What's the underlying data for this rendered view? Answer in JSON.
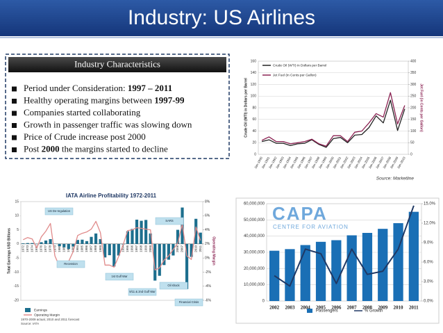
{
  "title": "Industry: US Airlines",
  "characteristics": {
    "heading": "Industry Characteristics",
    "bullets": [
      [
        {
          "text": "Period under Consideration: "
        },
        {
          "text": "1997 – 2011",
          "bold": true
        }
      ],
      [
        {
          "text": "Healthy operating margins between "
        },
        {
          "text": "1997-99",
          "bold": true
        }
      ],
      [
        {
          "text": "Companies started collaborating"
        }
      ],
      [
        {
          "text": "Growth in passenger traffic was slowing down"
        }
      ],
      [
        {
          "text": "Price of Crude increase post 2000"
        }
      ],
      [
        {
          "text": "Post "
        },
        {
          "text": "2000",
          "bold": true
        },
        {
          "text": " the margins started to decline"
        }
      ]
    ]
  },
  "chart_data": [
    {
      "type": "line",
      "ylabel": "Crude Oil (WTI) in Dollars per Barrel",
      "y2label": "Jet Fuel (in Cents per Gallon)",
      "source": "Source: Marketline",
      "categories": [
        "Jan-1990",
        "Jan-1991",
        "Jan-1992",
        "Jan-1993",
        "Jan-1994",
        "Jan-1995",
        "Jan-1996",
        "Jan-1997",
        "Jan-1998",
        "Jan-1999",
        "Jan-2000",
        "Jan-2001",
        "Jan-2002",
        "Jan-2003",
        "Jan-2004",
        "Jan-2005",
        "Jan-2006",
        "Jan-2007",
        "Jan-2008",
        "Jan-2009",
        "Jan-2010"
      ],
      "series": [
        {
          "name": "Crude Oil (WTI) in Dollars per Barrel",
          "color": "#222222",
          "values": [
            22,
            25,
            19,
            19,
            15,
            18,
            19,
            25,
            17,
            12,
            27,
            29,
            20,
            33,
            34,
            46,
            66,
            54,
            93,
            41,
            78
          ]
        },
        {
          "name": "Jet Fuel (in Cents per Gallon)",
          "color": "#8b2252",
          "axis": "y2",
          "values": [
            60,
            75,
            55,
            55,
            45,
            50,
            55,
            65,
            45,
            35,
            80,
            80,
            55,
            95,
            100,
            135,
            175,
            160,
            265,
            130,
            210
          ]
        }
      ],
      "ylim": [
        0,
        160
      ],
      "yticks": [
        0,
        20,
        40,
        60,
        80,
        100,
        120,
        140,
        160
      ],
      "y2lim": [
        0,
        400
      ],
      "y2ticks": [
        0,
        50,
        100,
        150,
        200,
        250,
        300,
        350,
        400
      ],
      "grid": true
    },
    {
      "type": "bar",
      "title": "IATA Airline Profitability 1972-2011",
      "ylabel": "Total Earnings USD Billions",
      "y2label": "Operating Margin",
      "note": "1970-2009 actual, 2010 and 2011 forecast",
      "source": "Source: IATA",
      "annotations": [
        "US De-regulation",
        "Recession",
        "1st Gulf War",
        "SARS",
        "9/11 & 2nd Gulf War",
        "Oil shock",
        "Financial Crisis"
      ],
      "categories": [
        "1972",
        "1973",
        "1974",
        "1975",
        "1976",
        "1977",
        "1978",
        "1979",
        "1980",
        "1981",
        "1982",
        "1983",
        "1984",
        "1985",
        "1986",
        "1987",
        "1988",
        "1989",
        "1990",
        "1991",
        "1992",
        "1993",
        "1994",
        "1995",
        "1996",
        "1997",
        "1998",
        "1999",
        "2000",
        "2001",
        "2002",
        "2003",
        "2004",
        "2005",
        "2006",
        "2007",
        "2008",
        "2009",
        "2010",
        "2011"
      ],
      "series": [
        {
          "name": "Earnings",
          "color": "#1d6f8e",
          "values": [
            0.2,
            0.3,
            0.3,
            -0.1,
            0.6,
            1.2,
            1.7,
            0.1,
            -0.8,
            -1.2,
            -1.8,
            -0.9,
            1.4,
            1.5,
            1.0,
            2.5,
            3.7,
            1.7,
            -4.8,
            -4.0,
            -8.0,
            -4.1,
            -0.2,
            4.5,
            5.3,
            8.6,
            8.2,
            8.5,
            3.7,
            -13.0,
            -11.3,
            -7.5,
            -5.6,
            -4.1,
            5.0,
            12.9,
            -16.0,
            -4.6,
            8.9,
            4.0
          ]
        },
        {
          "name": "Operating Margin",
          "color": "#e08a8a",
          "axis": "y2",
          "values": [
            2.6,
            2.9,
            2.7,
            1.4,
            3.0,
            3.8,
            4.9,
            0.3,
            -1.2,
            -0.6,
            -0.5,
            0.9,
            3.2,
            3.5,
            3.7,
            4.1,
            5.2,
            3.6,
            -1.0,
            -1.0,
            -1.3,
            0.2,
            1.9,
            3.9,
            4.0,
            4.3,
            4.2,
            4.1,
            4.0,
            -1.7,
            -1.4,
            -0.3,
            0.3,
            1.2,
            2.1,
            4.8,
            0.3,
            -0.2,
            4.4,
            2.5
          ]
        }
      ],
      "ylim": [
        -20,
        15
      ],
      "yticks": [
        -20,
        -15,
        -10,
        -5,
        0,
        5,
        10,
        15
      ],
      "y2lim": [
        -6,
        8
      ],
      "y2ticks": [
        {
          "value": -6,
          "label": "-6%"
        },
        {
          "value": -4,
          "label": "-4%"
        },
        {
          "value": -2,
          "label": "-2%"
        },
        {
          "value": 0,
          "label": "0%"
        },
        {
          "value": 2,
          "label": "2%"
        },
        {
          "value": 4,
          "label": "4%"
        },
        {
          "value": 6,
          "label": "6%"
        },
        {
          "value": 8,
          "label": "8%"
        }
      ],
      "grid": false
    },
    {
      "type": "bar",
      "logo": "CAPA",
      "logo_subtitle": "CENTRE FOR AVIATION",
      "categories": [
        "2002",
        "2003",
        "2004",
        "2005",
        "2006",
        "2007",
        "2008",
        "2009",
        "2010",
        "2011"
      ],
      "series": [
        {
          "name": "Passengers",
          "color": "#1a6fb5",
          "values": [
            31000000,
            32000000,
            34500000,
            36500000,
            37500000,
            40500000,
            42000000,
            44500000,
            48000000,
            55000000
          ]
        },
        {
          "name": "% Growth",
          "color": "#1f3864",
          "axis": "y2",
          "values": [
            3.9,
            2.3,
            8.0,
            7.3,
            2.7,
            8.0,
            4.1,
            4.6,
            8.0,
            14.7
          ]
        }
      ],
      "ylim": [
        0,
        60000000
      ],
      "yticks": [
        0,
        {
          "value": 10000000,
          "label": "10,000,000"
        },
        {
          "value": 20000000,
          "label": "20,000,000"
        },
        {
          "value": 30000000,
          "label": "30,000,000"
        },
        {
          "value": 40000000,
          "label": "40,000,000"
        },
        {
          "value": 50000000,
          "label": "50,000,000"
        },
        {
          "value": 60000000,
          "label": "60,000,000"
        }
      ],
      "y2lim": [
        0,
        15
      ],
      "y2ticks": [
        {
          "value": 0,
          "label": "0.0%"
        },
        {
          "value": 3,
          "label": "3.0%"
        },
        {
          "value": 6,
          "label": "6.0%"
        },
        {
          "value": 9,
          "label": "9.0%"
        },
        {
          "value": 12,
          "label": "12.0%"
        },
        {
          "value": 15,
          "label": "15.0%"
        }
      ],
      "grid": true
    }
  ]
}
